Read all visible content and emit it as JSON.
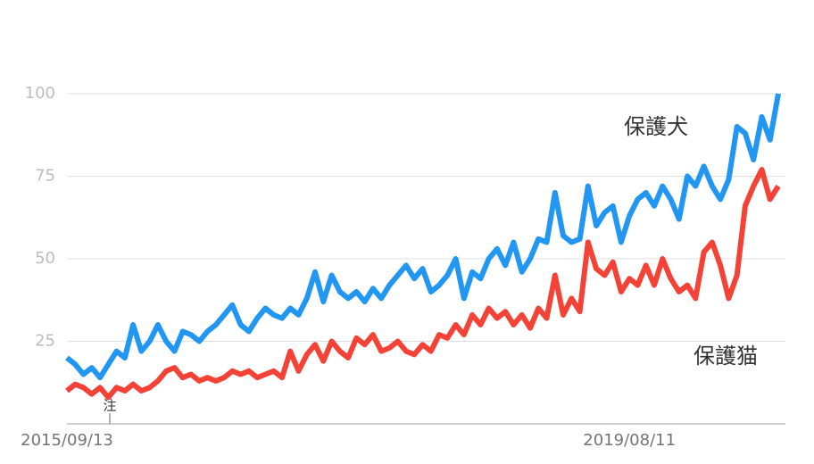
{
  "chart_data": {
    "type": "line",
    "categories": [
      "2015/09/13",
      null,
      null,
      null,
      null,
      null,
      null,
      null,
      null,
      null,
      null,
      null,
      null,
      null,
      null,
      null,
      null,
      null,
      null,
      null,
      null,
      null,
      null,
      null,
      null,
      null,
      null,
      null,
      null,
      null,
      null,
      null,
      null,
      null,
      null,
      null,
      null,
      null,
      null,
      null,
      null,
      null,
      null,
      null,
      null,
      null,
      null,
      null,
      null,
      null,
      null,
      null,
      null,
      null,
      null,
      null,
      null,
      null,
      null,
      null,
      null,
      null,
      null,
      null,
      null,
      null,
      null,
      null,
      "2019/08/11",
      null,
      null,
      null,
      null,
      null,
      null,
      null,
      null,
      null,
      null,
      null,
      null,
      null,
      null,
      null,
      null,
      null,
      null
    ],
    "series": [
      {
        "name": "保護犬",
        "color": "#2196f3",
        "values": [
          20,
          18,
          15,
          17,
          14,
          18,
          22,
          20,
          30,
          22,
          25,
          30,
          25,
          22,
          28,
          27,
          25,
          28,
          30,
          33,
          36,
          30,
          28,
          32,
          35,
          33,
          32,
          35,
          33,
          38,
          46,
          37,
          45,
          40,
          38,
          40,
          37,
          41,
          38,
          42,
          45,
          48,
          44,
          47,
          40,
          42,
          45,
          50,
          38,
          46,
          44,
          50,
          53,
          48,
          55,
          46,
          50,
          56,
          55,
          70,
          57,
          55,
          56,
          72,
          60,
          64,
          66,
          55,
          63,
          68,
          70,
          66,
          72,
          68,
          62,
          75,
          72,
          78,
          72,
          68,
          74,
          90,
          88,
          80,
          93,
          86,
          100
        ]
      },
      {
        "name": "保護猫",
        "color": "#f44336",
        "values": [
          10,
          12,
          11,
          9,
          11,
          8,
          11,
          10,
          12,
          10,
          11,
          13,
          16,
          17,
          14,
          15,
          13,
          14,
          13,
          14,
          16,
          15,
          16,
          14,
          15,
          16,
          14,
          22,
          16,
          21,
          24,
          19,
          25,
          22,
          20,
          26,
          24,
          27,
          22,
          23,
          25,
          22,
          21,
          24,
          22,
          27,
          26,
          30,
          27,
          33,
          30,
          35,
          32,
          34,
          30,
          33,
          29,
          35,
          32,
          45,
          33,
          38,
          34,
          55,
          47,
          45,
          49,
          40,
          44,
          42,
          48,
          42,
          50,
          44,
          40,
          42,
          38,
          52,
          55,
          48,
          38,
          45,
          66,
          72,
          77,
          68,
          72
        ]
      }
    ],
    "ylim": [
      0,
      100
    ],
    "yticks": [
      25,
      50,
      75,
      100
    ],
    "grid": true,
    "annotation": "注"
  }
}
